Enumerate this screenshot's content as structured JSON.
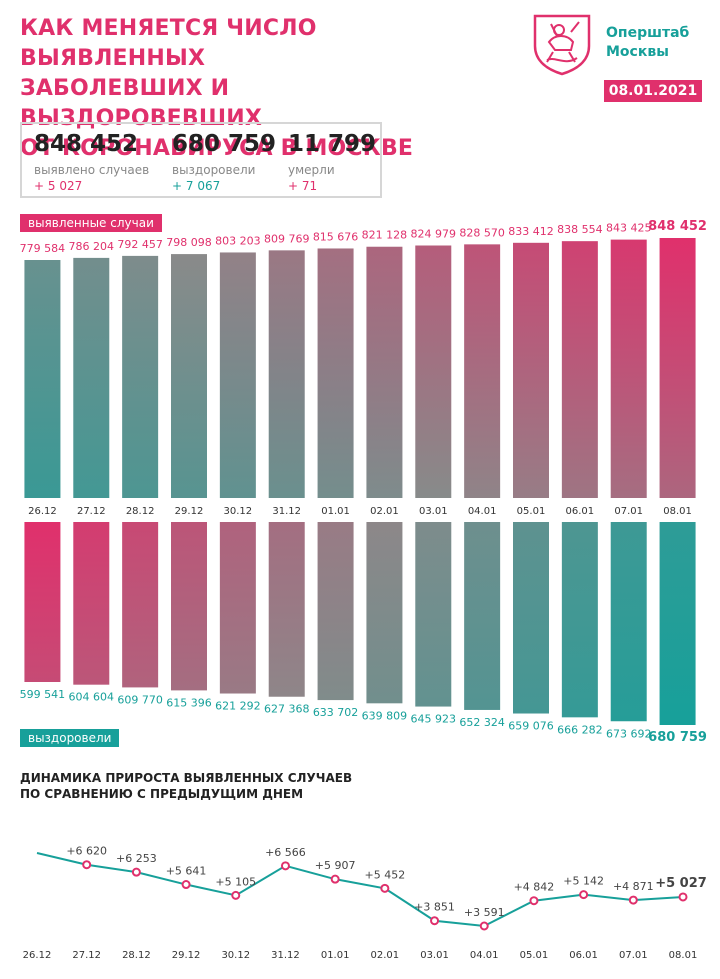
{
  "header": {
    "title_lines": [
      "КАК МЕНЯЕТСЯ ЧИСЛО ВЫЯВЛЕННЫХ",
      "ЗАБОЛЕВШИХ И ВЫЗДОРОВЕВШИХ",
      "ОТ КОРОНАВИРУСА В МОСКВЕ"
    ],
    "org_lines": [
      "Оперштаб",
      "Москвы"
    ],
    "date": "08.01.2021"
  },
  "stats": [
    {
      "value": "848 452",
      "label": "выявлено случаев",
      "delta": "+ 5 027",
      "color": "#e0306c"
    },
    {
      "value": "680 759",
      "label": "выздоровели",
      "delta": "+ 7 067",
      "color": "#17a09a"
    },
    {
      "value": "11 799",
      "label": "умерли",
      "delta": "+ 71",
      "color": "#e0306c"
    }
  ],
  "labels": {
    "cases_tag": "выявленные случаи",
    "recovered_tag": "выздоровели",
    "dynamics_title_lines": [
      "ДИНАМИКА ПРИРОСТА ВЫЯВЛЕННЫХ СЛУЧАЕВ",
      "ПО СРАВНЕНИЮ С ПРЕДЫДУЩИМ ДНЕМ"
    ]
  },
  "colors": {
    "pink": "#e0306c",
    "teal": "#17a09a",
    "grey": "#8a8a8a"
  },
  "chart_data": [
    {
      "type": "bar",
      "title": "выявленные случаи",
      "categories": [
        "26.12",
        "27.12",
        "28.12",
        "29.12",
        "30.12",
        "31.12",
        "01.01",
        "02.01",
        "03.01",
        "04.01",
        "05.01",
        "06.01",
        "07.01",
        "08.01"
      ],
      "values": [
        779584,
        786204,
        792457,
        798098,
        803203,
        809769,
        815676,
        821128,
        824979,
        828570,
        833412,
        838554,
        843425,
        848452
      ],
      "labels": [
        "779 584",
        "786 204",
        "792 457",
        "798 098",
        "803 203",
        "809 769",
        "815 676",
        "821 128",
        "824 979",
        "828 570",
        "833 412",
        "838 554",
        "843 425",
        "848 452"
      ]
    },
    {
      "type": "bar",
      "title": "выздоровели",
      "categories": [
        "26.12",
        "27.12",
        "28.12",
        "29.12",
        "30.12",
        "31.12",
        "01.01",
        "02.01",
        "03.01",
        "04.01",
        "05.01",
        "06.01",
        "07.01",
        "08.01"
      ],
      "values": [
        599541,
        604604,
        609770,
        615396,
        621292,
        627368,
        633702,
        639809,
        645923,
        652324,
        659076,
        666282,
        673692,
        680759
      ],
      "labels": [
        "599 541",
        "604 604",
        "609 770",
        "615 396",
        "621 292",
        "627 368",
        "633 702",
        "639 809",
        "645 923",
        "652 324",
        "659 076",
        "666 282",
        "673 692",
        "680 759"
      ]
    },
    {
      "type": "line",
      "title": "ДИНАМИКА ПРИРОСТА ВЫЯВЛЕННЫХ СЛУЧАЕВ ПО СРАВНЕНИЮ С ПРЕДЫДУЩИМ ДНЕМ",
      "categories": [
        "26.12",
        "27.12",
        "28.12",
        "29.12",
        "30.12",
        "31.12",
        "01.01",
        "02.01",
        "03.01",
        "04.01",
        "05.01",
        "06.01",
        "07.01",
        "08.01"
      ],
      "values": [
        7200,
        6620,
        6253,
        5641,
        5105,
        6566,
        5907,
        5452,
        3851,
        3591,
        4842,
        5142,
        4871,
        5027
      ],
      "labels": [
        "",
        "+6 620",
        "+6 253",
        "+5 641",
        "+5 105",
        "+6 566",
        "+5 907",
        "+5 452",
        "+3 851",
        "+3 591",
        "+4 842",
        "+5 142",
        "+4 871",
        "+5 027"
      ]
    }
  ]
}
